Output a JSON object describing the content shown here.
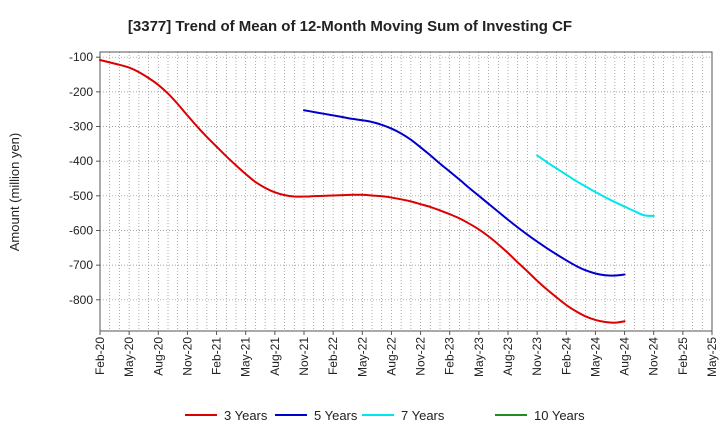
{
  "chart_data": {
    "type": "line",
    "title": "[3377]  Trend of Mean of 12-Month Moving Sum of Investing CF",
    "xlabel": "",
    "ylabel": "Amount (million yen)",
    "ylim": [
      -890,
      -85
    ],
    "yticks": [
      -100,
      -200,
      -300,
      -400,
      -500,
      -600,
      -700,
      -800
    ],
    "grid": true,
    "legend_position": "bottom",
    "x_ticks": [
      "Feb-20",
      "May-20",
      "Aug-20",
      "Nov-20",
      "Feb-21",
      "May-21",
      "Aug-21",
      "Nov-21",
      "Feb-22",
      "May-22",
      "Aug-22",
      "Nov-22",
      "Feb-23",
      "May-23",
      "Aug-23",
      "Nov-23",
      "Feb-24",
      "May-24",
      "Aug-24",
      "Nov-24",
      "Feb-25",
      "May-25"
    ],
    "series": [
      {
        "name": "3 Years",
        "color": "#dd0000",
        "start_index": 0,
        "values": [
          -108,
          -115,
          -122,
          -130,
          -143,
          -160,
          -180,
          -205,
          -235,
          -268,
          -300,
          -330,
          -358,
          -386,
          -412,
          -437,
          -460,
          -477,
          -490,
          -498,
          -502,
          -502,
          -501,
          -500,
          -499,
          -498,
          -497,
          -497,
          -499,
          -501,
          -505,
          -510,
          -516,
          -524,
          -532,
          -542,
          -553,
          -565,
          -580,
          -597,
          -617,
          -640,
          -665,
          -692,
          -718,
          -745,
          -770,
          -793,
          -815,
          -833,
          -848,
          -858,
          -864,
          -866,
          -862
        ]
      },
      {
        "name": "5 Years",
        "color": "#0000cc",
        "start_index": 21,
        "values": [
          -253,
          -258,
          -263,
          -268,
          -273,
          -278,
          -282,
          -287,
          -295,
          -306,
          -320,
          -338,
          -360,
          -383,
          -407,
          -430,
          -453,
          -477,
          -500,
          -523,
          -546,
          -569,
          -591,
          -612,
          -632,
          -651,
          -669,
          -686,
          -702,
          -715,
          -724,
          -729,
          -730,
          -727
        ]
      },
      {
        "name": "7 Years",
        "color": "#00e5ee",
        "start_index": 45,
        "values": [
          -383,
          -403,
          -421,
          -439,
          -457,
          -473,
          -489,
          -504,
          -518,
          -531,
          -544,
          -556,
          -558
        ]
      },
      {
        "name": "10 Years",
        "color": "#228B22",
        "start_index": 0,
        "values": []
      }
    ]
  }
}
